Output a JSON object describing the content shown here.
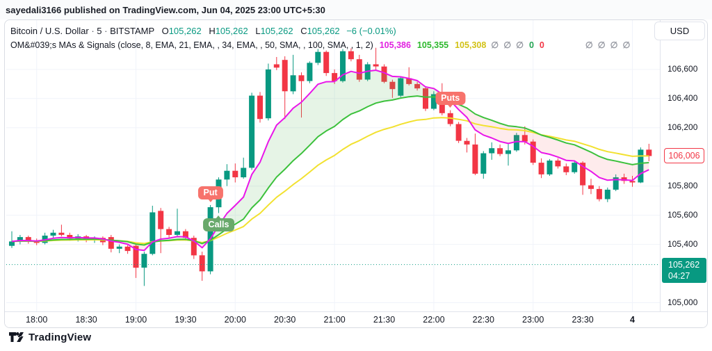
{
  "attribution": "sayedali3166 published on TradingView.com, Jun 04, 2025 23:00 UTC+5:30",
  "header": {
    "symbol": "Bitcoin / U.S. Dollar",
    "sep": "·",
    "interval": "5",
    "exchange": "BITSTAMP",
    "o_label": "O",
    "o_value": "105,262",
    "h_label": "H",
    "h_value": "105,262",
    "l_label": "L",
    "l_value": "105,262",
    "c_label": "C",
    "c_value": "105,262",
    "change": "−6 (−0.01%)",
    "indicator_name": "OM&#039;s MAs & Signals (close, 8, EMA, 21, EMA, , 34, EMA, , 50, SMA, , 100, SMA, , 1, 2)",
    "indicator_values": [
      {
        "text": "105,386",
        "color": "#e121e1"
      },
      {
        "text": "105,355",
        "color": "#2db82d"
      },
      {
        "text": "105,308",
        "color": "#d2c216"
      }
    ],
    "zeros_group1": [
      "∅",
      "∅",
      "∅"
    ],
    "zero_green": "0",
    "zero_red": "0",
    "zeros_group2": [
      "∅",
      "∅",
      "∅",
      "∅"
    ]
  },
  "axis_currency_button": "USD",
  "price_labels": {
    "last_close_label": "106,006",
    "current_price_label": "105,262",
    "countdown": "04:27"
  },
  "footer": {
    "brand": "TradingView"
  },
  "chart_data": {
    "type": "candlestick",
    "title": "Bitcoin / U.S. Dollar, 5m, BITSTAMP",
    "price_axis": {
      "min": 104950,
      "max": 106690,
      "tick_values": [
        106600,
        106400,
        106200,
        105800,
        105600,
        105400,
        105000
      ],
      "tick_labels": [
        "106,600",
        "106,400",
        "106,200",
        "105,800",
        "105,600",
        "105,400",
        "105,000"
      ]
    },
    "time_axis": {
      "labels": [
        "18:00",
        "18:30",
        "19:00",
        "19:30",
        "20:00",
        "20:30",
        "21:00",
        "21:30",
        "22:00",
        "22:30",
        "23:00",
        "23:30",
        "4"
      ],
      "label_indices": [
        3,
        9,
        15,
        21,
        27,
        33,
        39,
        45,
        51,
        57,
        63,
        69,
        75
      ],
      "grid_indices": [
        3,
        15,
        27,
        39,
        51,
        63,
        75
      ]
    },
    "current_price": 105262,
    "last_close": 106006,
    "colors": {
      "up": "#089981",
      "down": "#f23645",
      "ma_fast": "#e916e9",
      "ma_mid": "#3cc13c",
      "ma_slow": "#f2e130",
      "fill_bull": "rgba(76,175,80,0.14)",
      "fill_bear": "rgba(242,54,69,0.10)",
      "grid": "#f0f3fa",
      "price_line": "#089981"
    },
    "ma_periods": {
      "fast": 8,
      "mid": 21,
      "slow": 34
    },
    "signals": [
      {
        "label": "Put",
        "index": 24,
        "side": "above",
        "kind": "put"
      },
      {
        "label": "Calls",
        "index": 25,
        "side": "below",
        "kind": "call"
      },
      {
        "label": "Puts",
        "index": 53,
        "side": "above",
        "kind": "put"
      }
    ],
    "candles": [
      [
        105390,
        105490,
        105375,
        105420
      ],
      [
        105420,
        105465,
        105400,
        105450
      ],
      [
        105450,
        105460,
        105405,
        105425
      ],
      [
        105425,
        105440,
        105395,
        105410
      ],
      [
        105410,
        105480,
        105400,
        105460
      ],
      [
        105460,
        105500,
        105440,
        105480
      ],
      [
        105480,
        105535,
        105455,
        105465
      ],
      [
        105465,
        105480,
        105425,
        105440
      ],
      [
        105440,
        105470,
        105420,
        105455
      ],
      [
        105455,
        105465,
        105415,
        105430
      ],
      [
        105430,
        105455,
        105410,
        105445
      ],
      [
        105445,
        105455,
        105395,
        105415
      ],
      [
        105450,
        105465,
        105345,
        105370
      ],
      [
        105370,
        105400,
        105340,
        105385
      ],
      [
        105385,
        105395,
        105335,
        105355
      ],
      [
        105390,
        105400,
        105170,
        105240
      ],
      [
        105240,
        105350,
        105115,
        105335
      ],
      [
        105335,
        105665,
        105325,
        105620
      ],
      [
        105630,
        105650,
        105340,
        105505
      ],
      [
        105505,
        105520,
        105445,
        105465
      ],
      [
        105465,
        105645,
        105455,
        105490
      ],
      [
        105490,
        105505,
        105425,
        105445
      ],
      [
        105445,
        105460,
        105300,
        105325
      ],
      [
        105325,
        105350,
        105150,
        105215
      ],
      [
        105215,
        105670,
        105195,
        105655
      ],
      [
        105655,
        105860,
        105615,
        105845
      ],
      [
        105845,
        105950,
        105800,
        105905
      ],
      [
        105905,
        105955,
        105825,
        105860
      ],
      [
        105860,
        105995,
        105850,
        105925
      ],
      [
        105925,
        106440,
        105910,
        106420
      ],
      [
        106420,
        106445,
        106235,
        106260
      ],
      [
        106265,
        106640,
        106250,
        106600
      ],
      [
        106635,
        106685,
        106595,
        106612
      ],
      [
        106665,
        106690,
        106260,
        106450
      ],
      [
        106450,
        106700,
        106430,
        106560
      ],
      [
        106560,
        106580,
        106270,
        106520
      ],
      [
        106520,
        106655,
        106505,
        106645
      ],
      [
        106645,
        106740,
        106630,
        106720
      ],
      [
        106720,
        106730,
        106555,
        106575
      ],
      [
        106575,
        106600,
        106500,
        106520
      ],
      [
        106520,
        106740,
        106510,
        106725
      ],
      [
        106725,
        106745,
        106655,
        106670
      ],
      [
        106670,
        106700,
        106515,
        106530
      ],
      [
        106530,
        106650,
        106520,
        106635
      ],
      [
        106635,
        106748,
        106590,
        106620
      ],
      [
        106620,
        106635,
        106505,
        106515
      ],
      [
        106515,
        106530,
        106405,
        106465
      ],
      [
        106420,
        106550,
        106410,
        106540
      ],
      [
        106540,
        106615,
        106490,
        106500
      ],
      [
        106500,
        106515,
        106455,
        106470
      ],
      [
        106470,
        106485,
        106315,
        106330
      ],
      [
        106330,
        106450,
        106320,
        106430
      ],
      [
        106430,
        106505,
        106285,
        106300
      ],
      [
        106300,
        106320,
        106210,
        106225
      ],
      [
        106225,
        106240,
        106095,
        106110
      ],
      [
        106110,
        106130,
        106030,
        106085
      ],
      [
        106085,
        106160,
        105875,
        105885
      ],
      [
        105885,
        106040,
        105850,
        106025
      ],
      [
        106025,
        106100,
        105980,
        106060
      ],
      [
        106060,
        106085,
        106005,
        106020
      ],
      [
        106020,
        106095,
        105940,
        106045
      ],
      [
        106045,
        106165,
        106035,
        106150
      ],
      [
        106150,
        106210,
        106085,
        106105
      ],
      [
        106105,
        106120,
        105945,
        105960
      ],
      [
        105960,
        105990,
        105855,
        105880
      ],
      [
        105880,
        105985,
        105870,
        105975
      ],
      [
        105975,
        105990,
        105920,
        105935
      ],
      [
        105935,
        105955,
        105875,
        105895
      ],
      [
        105895,
        105970,
        105885,
        105960
      ],
      [
        105960,
        105970,
        105740,
        105805
      ],
      [
        105805,
        105850,
        105745,
        105780
      ],
      [
        105780,
        105800,
        105695,
        105710
      ],
      [
        105710,
        105790,
        105690,
        105775
      ],
      [
        105775,
        105880,
        105765,
        105860
      ],
      [
        105860,
        105885,
        105815,
        105835
      ],
      [
        105835,
        105870,
        105795,
        105825
      ],
      [
        105825,
        106065,
        105820,
        106050
      ],
      [
        106050,
        106090,
        105970,
        106006
      ]
    ]
  }
}
